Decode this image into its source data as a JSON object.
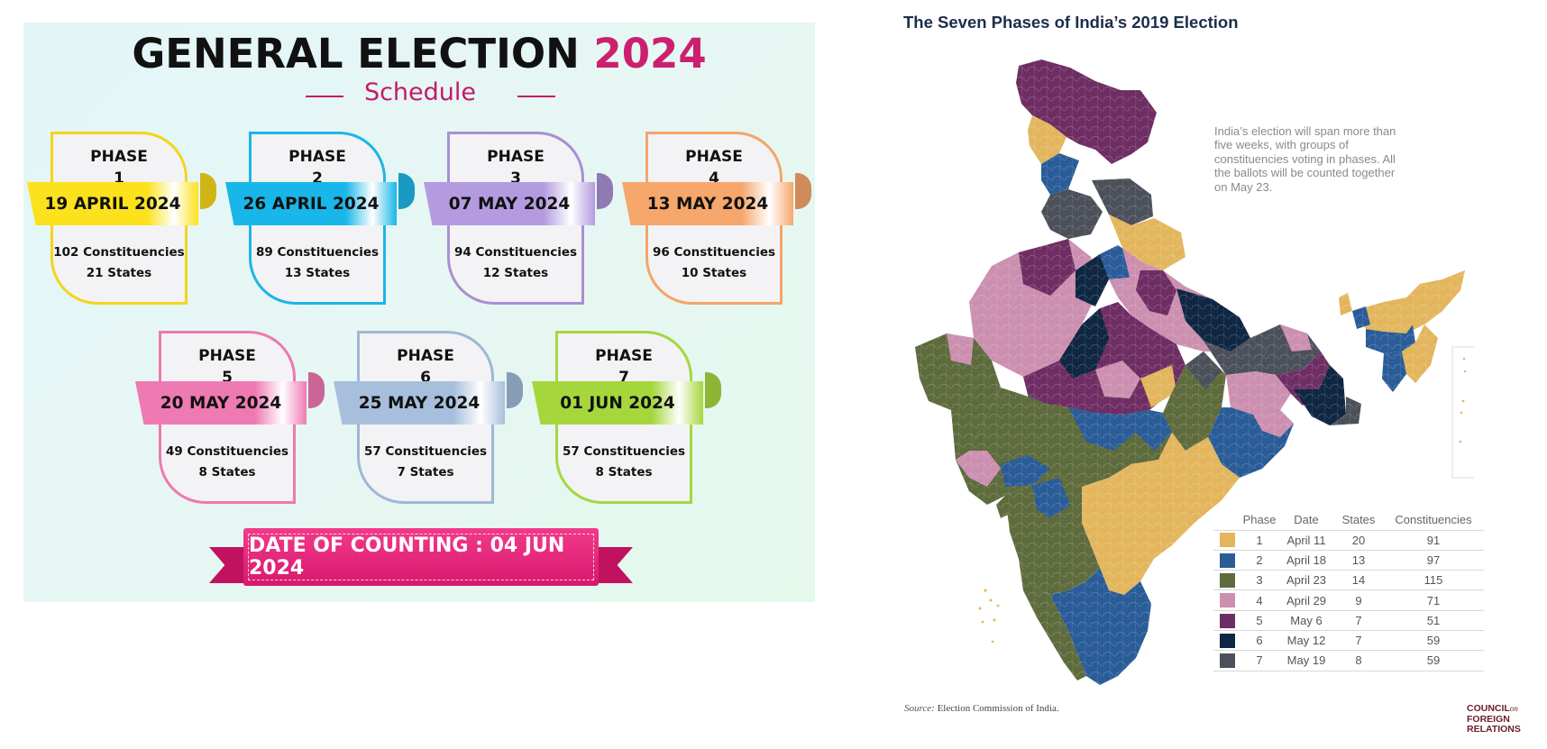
{
  "infographic": {
    "title_main": "GENERAL ELECTION",
    "title_year": "2024",
    "subtitle": "Schedule",
    "phases": [
      {
        "label": "PHASE",
        "num": "1",
        "date": "19 APRIL 2024",
        "constituencies": "102 Constituencies",
        "states": "21 States",
        "color": "#f3d51a",
        "ribbon": "#fbe21c"
      },
      {
        "label": "PHASE",
        "num": "2",
        "date": "26 APRIL 2024",
        "constituencies": "89 Constituencies",
        "states": "13 States",
        "color": "#1fb4e8",
        "ribbon": "#19b6e9"
      },
      {
        "label": "PHASE",
        "num": "3",
        "date": "07 MAY 2024",
        "constituencies": "94 Constituencies",
        "states": "12 States",
        "color": "#a98fd2",
        "ribbon": "#b49be0"
      },
      {
        "label": "PHASE",
        "num": "4",
        "date": "13 MAY 2024",
        "constituencies": "96 Constituencies",
        "states": "10 States",
        "color": "#f4a56a",
        "ribbon": "#f6a76c"
      },
      {
        "label": "PHASE",
        "num": "5",
        "date": "20 MAY 2024",
        "constituencies": "49 Constituencies",
        "states": "8 States",
        "color": "#ee78b0",
        "ribbon": "#ef7ab3"
      },
      {
        "label": "PHASE",
        "num": "6",
        "date": "25 MAY 2024",
        "constituencies": "57 Constituencies",
        "states": "7 States",
        "color": "#9fb7d6",
        "ribbon": "#a7bfdc"
      },
      {
        "label": "PHASE",
        "num": "7",
        "date": "01 JUN 2024",
        "constituencies": "57 Constituencies",
        "states": "8 States",
        "color": "#a6d640",
        "ribbon": "#a5d63c"
      }
    ],
    "counting": "DATE OF COUNTING : 04 JUN 2024"
  },
  "map": {
    "title": "The Seven Phases of India’s 2019 Election",
    "note": "India’s election will span more than five weeks, with groups of constituencies voting in phases. All the ballots will be counted together on May 23.",
    "legend_headers": [
      "Phase",
      "Date",
      "States",
      "Constituencies"
    ],
    "legend_rows": [
      {
        "phase": "1",
        "date": "April 11",
        "states": "20",
        "constituencies": "91",
        "color": "#e3b65e"
      },
      {
        "phase": "2",
        "date": "April 18",
        "states": "13",
        "constituencies": "97",
        "color": "#2a5c98"
      },
      {
        "phase": "3",
        "date": "April 23",
        "states": "14",
        "constituencies": "115",
        "color": "#5e6b3c"
      },
      {
        "phase": "4",
        "date": "April 29",
        "states": "9",
        "constituencies": "71",
        "color": "#cc8fb0"
      },
      {
        "phase": "5",
        "date": "May 6",
        "states": "7",
        "constituencies": "51",
        "color": "#6f2e63"
      },
      {
        "phase": "6",
        "date": "May 12",
        "states": "7",
        "constituencies": "59",
        "color": "#0f2743"
      },
      {
        "phase": "7",
        "date": "May 19",
        "states": "8",
        "constituencies": "59",
        "color": "#4b505a"
      }
    ],
    "source_label": "Source:",
    "source_text": "Election Commission of India.",
    "logo": [
      "COUNCIL",
      "on",
      "FOREIGN",
      "RELATIONS"
    ]
  }
}
